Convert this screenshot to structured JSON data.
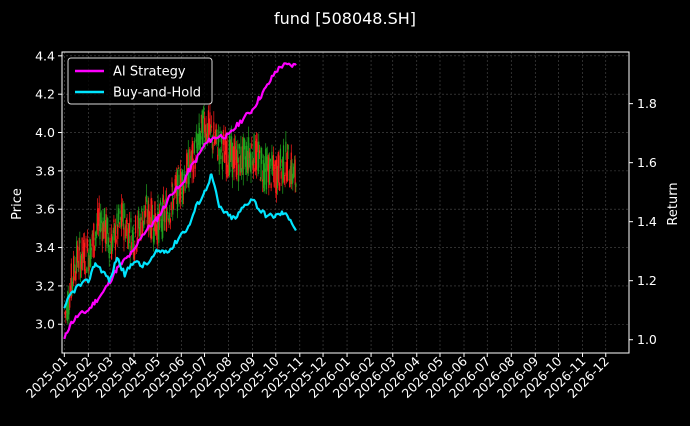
{
  "colors": {
    "background": "#000000",
    "foreground": "#ffffff",
    "grid": "#4d4d4d",
    "candle_up": "#ff1a1a",
    "candle_down": "#1fa31f",
    "ai_strategy": "#ff00ff",
    "buy_and_hold": "#00e5ff"
  },
  "chart_data": {
    "type": "line",
    "title": "fund [508048.SH]",
    "xlabel": "",
    "ylabel": "Price",
    "ylabel_right": "Return",
    "x_ticks": [
      "2025-01",
      "2025-02",
      "2025-03",
      "2025-04",
      "2025-05",
      "2025-06",
      "2025-07",
      "2025-08",
      "2025-09",
      "2025-10",
      "2025-11",
      "2025-12",
      "2026-01",
      "2026-02",
      "2026-03",
      "2026-04",
      "2026-05",
      "2026-06",
      "2026-07",
      "2026-08",
      "2026-09",
      "2026-10",
      "2026-11",
      "2026-12"
    ],
    "xlim": [
      "2024-12-29",
      "2026-12-31"
    ],
    "ylim_left": [
      2.85,
      4.42
    ],
    "y_ticks_left": [
      3.0,
      3.2,
      3.4,
      3.6,
      3.8,
      4.0,
      4.2,
      4.4
    ],
    "ylim_right": [
      0.955,
      1.975
    ],
    "y_ticks_right": [
      1.0,
      1.2,
      1.4,
      1.6,
      1.8
    ],
    "grid": true,
    "legend_position": "top-left",
    "price_series": {
      "name": "Price",
      "kind": "candlestick",
      "x": [
        "2025-01-02",
        "2025-01-16",
        "2025-02-03",
        "2025-02-17",
        "2025-03-03",
        "2025-03-17",
        "2025-04-01",
        "2025-04-15",
        "2025-05-01",
        "2025-05-15",
        "2025-06-02",
        "2025-06-16",
        "2025-07-01",
        "2025-07-15",
        "2025-08-01",
        "2025-08-15",
        "2025-09-01",
        "2025-09-15",
        "2025-10-01",
        "2025-10-15",
        "2025-10-27"
      ],
      "values": [
        3.05,
        3.33,
        3.38,
        3.55,
        3.42,
        3.55,
        3.45,
        3.58,
        3.52,
        3.6,
        3.75,
        3.85,
        4.05,
        3.95,
        3.88,
        3.85,
        3.9,
        3.82,
        3.78,
        3.85,
        3.75
      ]
    },
    "series": [
      {
        "name": "AI Strategy",
        "axis": "right",
        "x": [
          "2025-01-01",
          "2025-01-08",
          "2025-01-18",
          "2025-02-01",
          "2025-02-10",
          "2025-02-20",
          "2025-03-01",
          "2025-03-10",
          "2025-03-20",
          "2025-04-01",
          "2025-04-10",
          "2025-04-20",
          "2025-05-01",
          "2025-05-10",
          "2025-05-20",
          "2025-06-01",
          "2025-06-10",
          "2025-06-20",
          "2025-07-01",
          "2025-07-10",
          "2025-07-20",
          "2025-08-01",
          "2025-08-10",
          "2025-08-20",
          "2025-09-01",
          "2025-09-10",
          "2025-09-20",
          "2025-10-01",
          "2025-10-10",
          "2025-10-20",
          "2025-10-27"
        ],
        "values": [
          1.0,
          1.05,
          1.08,
          1.1,
          1.13,
          1.16,
          1.2,
          1.24,
          1.27,
          1.3,
          1.35,
          1.38,
          1.41,
          1.45,
          1.5,
          1.52,
          1.57,
          1.61,
          1.66,
          1.68,
          1.69,
          1.69,
          1.72,
          1.75,
          1.78,
          1.82,
          1.86,
          1.91,
          1.93,
          1.93,
          1.93
        ]
      },
      {
        "name": "Buy-and-Hold",
        "axis": "right",
        "x": [
          "2025-01-01",
          "2025-01-08",
          "2025-01-18",
          "2025-02-01",
          "2025-02-10",
          "2025-02-20",
          "2025-03-01",
          "2025-03-10",
          "2025-03-20",
          "2025-04-01",
          "2025-04-10",
          "2025-04-20",
          "2025-05-01",
          "2025-05-10",
          "2025-05-20",
          "2025-06-01",
          "2025-06-10",
          "2025-06-20",
          "2025-07-01",
          "2025-07-10",
          "2025-07-20",
          "2025-08-01",
          "2025-08-10",
          "2025-08-20",
          "2025-09-01",
          "2025-09-10",
          "2025-09-20",
          "2025-10-01",
          "2025-10-10",
          "2025-10-20",
          "2025-10-27"
        ],
        "values": [
          1.1,
          1.15,
          1.18,
          1.2,
          1.26,
          1.23,
          1.2,
          1.28,
          1.22,
          1.27,
          1.25,
          1.26,
          1.3,
          1.3,
          1.31,
          1.36,
          1.38,
          1.45,
          1.5,
          1.56,
          1.45,
          1.42,
          1.41,
          1.45,
          1.48,
          1.44,
          1.42,
          1.42,
          1.43,
          1.41,
          1.37
        ]
      }
    ]
  }
}
